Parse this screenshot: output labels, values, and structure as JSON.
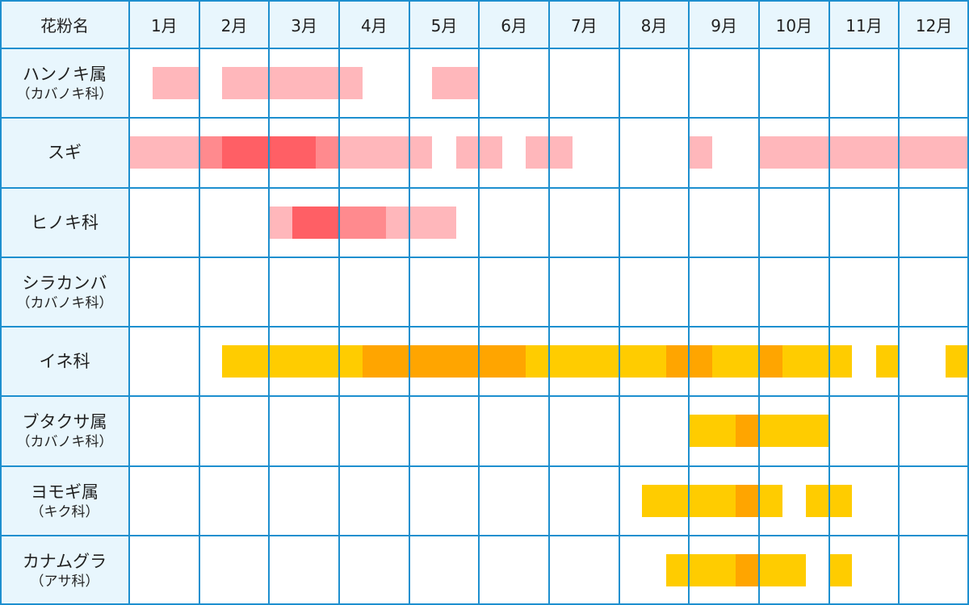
{
  "chart_data": {
    "type": "heatmap",
    "header_label": "花粉名",
    "months": [
      "1月",
      "2月",
      "3月",
      "4月",
      "5月",
      "6月",
      "7月",
      "8月",
      "9月",
      "10月",
      "11月",
      "12月"
    ],
    "levels": {
      "low": "#ffb7bb",
      "mid": "#ff8a8e",
      "high": "#ff5f65",
      "grass_low": "#ffcc00",
      "grass_high": "#ffa500"
    },
    "rows": [
      {
        "name": "ハンノキ属",
        "sub": "（カバノキ科）",
        "segments": [
          [
            1.33,
            2.0,
            "low"
          ],
          [
            2.33,
            4.33,
            "low"
          ],
          [
            5.33,
            6.0,
            "low"
          ]
        ]
      },
      {
        "name": "スギ",
        "sub": "",
        "segments": [
          [
            1.0,
            2.0,
            "low"
          ],
          [
            2.0,
            2.33,
            "mid"
          ],
          [
            2.33,
            3.67,
            "high"
          ],
          [
            3.67,
            4.0,
            "mid"
          ],
          [
            4.0,
            5.33,
            "low"
          ],
          [
            5.67,
            6.33,
            "low"
          ],
          [
            6.67,
            7.33,
            "low"
          ],
          [
            9.0,
            9.33,
            "low"
          ],
          [
            10.0,
            13.0,
            "low"
          ]
        ]
      },
      {
        "name": "ヒノキ科",
        "sub": "",
        "segments": [
          [
            3.0,
            3.33,
            "low"
          ],
          [
            3.33,
            4.0,
            "high"
          ],
          [
            4.0,
            4.67,
            "mid"
          ],
          [
            4.67,
            5.67,
            "low"
          ]
        ]
      },
      {
        "name": "シラカンバ",
        "sub": "（カバノキ科）",
        "segments": []
      },
      {
        "name": "イネ科",
        "sub": "",
        "segments": [
          [
            2.33,
            4.33,
            "grass_low"
          ],
          [
            4.33,
            6.67,
            "grass_high"
          ],
          [
            6.67,
            8.67,
            "grass_low"
          ],
          [
            8.67,
            9.33,
            "grass_high"
          ],
          [
            9.33,
            10.0,
            "grass_low"
          ],
          [
            10.0,
            10.33,
            "grass_high"
          ],
          [
            10.33,
            11.33,
            "grass_low"
          ],
          [
            11.67,
            12.0,
            "grass_low"
          ],
          [
            12.67,
            13.0,
            "grass_low"
          ]
        ]
      },
      {
        "name": "ブタクサ属",
        "sub": "（カバノキ科）",
        "segments": [
          [
            9.0,
            9.67,
            "grass_low"
          ],
          [
            9.67,
            10.0,
            "grass_high"
          ],
          [
            10.0,
            11.0,
            "grass_low"
          ]
        ]
      },
      {
        "name": "ヨモギ属",
        "sub": "（キク科）",
        "segments": [
          [
            8.33,
            9.67,
            "grass_low"
          ],
          [
            9.67,
            10.0,
            "grass_high"
          ],
          [
            10.0,
            10.33,
            "grass_low"
          ],
          [
            10.67,
            11.33,
            "grass_low"
          ]
        ]
      },
      {
        "name": "カナムグラ",
        "sub": "（アサ科）",
        "segments": [
          [
            8.67,
            9.67,
            "grass_low"
          ],
          [
            9.67,
            10.0,
            "grass_high"
          ],
          [
            10.0,
            10.67,
            "grass_low"
          ],
          [
            11.0,
            11.33,
            "grass_low"
          ]
        ]
      }
    ]
  }
}
